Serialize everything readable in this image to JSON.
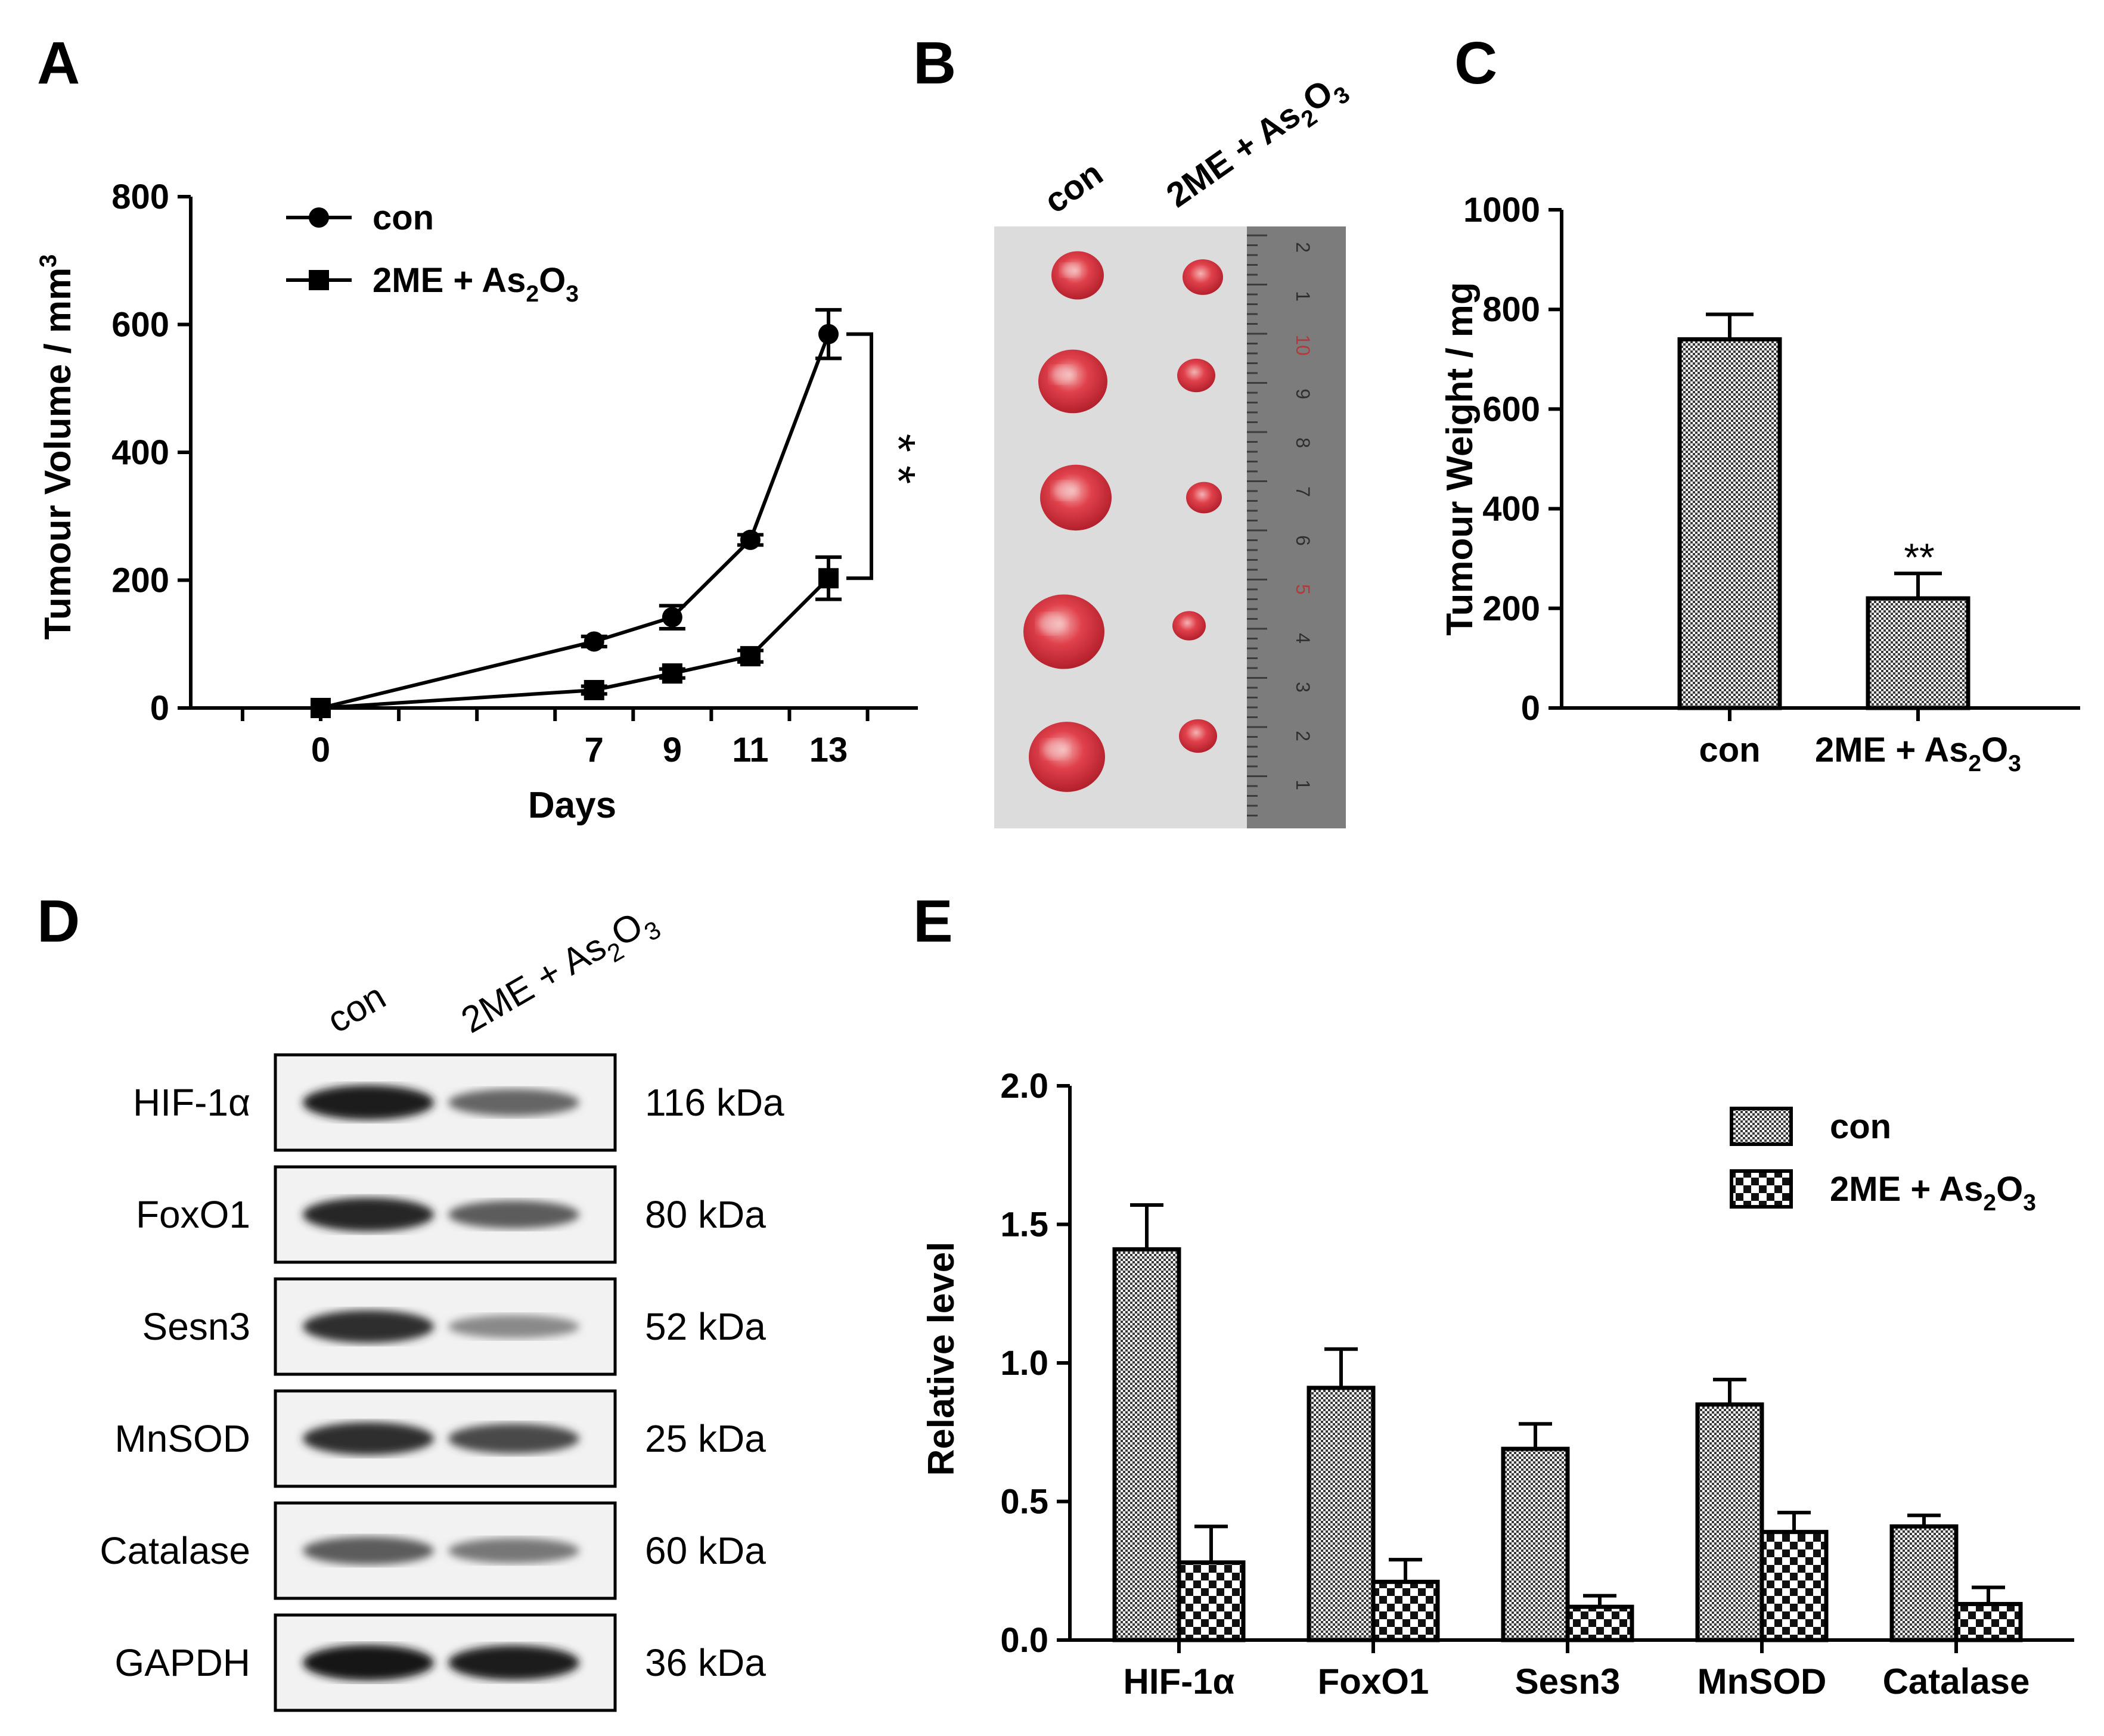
{
  "panels": {
    "a": "A",
    "b": "B",
    "c": "C",
    "d": "D",
    "e": "E"
  },
  "colors": {
    "ink": "#000000",
    "tumor": "#d8323c",
    "photo_bg": "#dcdcdc",
    "ruler": "#7c7c7c"
  },
  "chart_data": [
    {
      "panel": "A",
      "type": "line",
      "xlabel": "Days",
      "ylabel": "Tumour Volume / mm",
      "ylabel_sup": "3",
      "x": [
        0,
        7,
        9,
        11,
        13
      ],
      "x_ticklabels": [
        "0",
        "7",
        "9",
        "11",
        "13"
      ],
      "ylim": [
        0,
        800
      ],
      "y_ticks": [
        0,
        200,
        400,
        600,
        800
      ],
      "series": [
        {
          "name": "con",
          "marker": "circle",
          "values": [
            0,
            104,
            142,
            263,
            585
          ],
          "errors": [
            0,
            8,
            18,
            8,
            38
          ]
        },
        {
          "name": "2ME + As2O3",
          "marker": "square",
          "values": [
            0,
            28,
            54,
            81,
            203
          ],
          "errors": [
            0,
            6,
            7,
            9,
            33
          ]
        }
      ],
      "legend": [
        {
          "name": "con",
          "text": "con",
          "marker": "circle"
        },
        {
          "name": "2me-as2o3",
          "text": "2ME + As",
          "sub1": "2",
          "mid": "O",
          "sub2": "3",
          "marker": "square"
        }
      ],
      "significance": "* *"
    },
    {
      "panel": "C",
      "type": "bar",
      "ylabel": "Tumour Weight / mg",
      "categories": [
        "con",
        "2ME + As2O3"
      ],
      "values": [
        740,
        220
      ],
      "errors": [
        50,
        50
      ],
      "ylim": [
        0,
        1000
      ],
      "y_ticks": [
        0,
        200,
        400,
        600,
        800,
        1000
      ],
      "cat_labels": [
        {
          "text": "con"
        },
        {
          "text": "2ME + As",
          "sub1": "2",
          "mid": "O",
          "sub2": "3"
        }
      ],
      "significance": "**"
    },
    {
      "panel": "E",
      "type": "bar",
      "ylabel": "Relative level",
      "categories": [
        "HIF-1α",
        "FoxO1",
        "Sesn3",
        "MnSOD",
        "Catalase"
      ],
      "series": [
        {
          "name": "con",
          "values": [
            1.41,
            0.91,
            0.69,
            0.85,
            0.41
          ],
          "errors": [
            0.16,
            0.14,
            0.09,
            0.09,
            0.04
          ]
        },
        {
          "name": "2ME + As2O3",
          "values": [
            0.28,
            0.21,
            0.12,
            0.39,
            0.13
          ],
          "errors": [
            0.13,
            0.08,
            0.04,
            0.07,
            0.06
          ]
        }
      ],
      "ylim": [
        0,
        2.0
      ],
      "y_ticks": [
        "0.0",
        "0.5",
        "1.0",
        "1.5",
        "2.0"
      ],
      "legend": [
        {
          "name": "con",
          "text": "con"
        },
        {
          "name": "2me-as2o3",
          "text": "2ME + As",
          "sub1": "2",
          "mid": "O",
          "sub2": "3"
        }
      ],
      "legend_position": "top-right"
    }
  ],
  "photo": {
    "groups": [
      {
        "text": "con"
      },
      {
        "text": "2ME + As",
        "sub1": "2",
        "mid": "O",
        "sub2": "3"
      }
    ],
    "ruler_marks": [
      "2",
      "1",
      "10",
      "9",
      "8",
      "7",
      "6",
      "5",
      "4",
      "3",
      "2",
      "1"
    ],
    "tumours_con": 5,
    "tumours_treated": 5
  },
  "blot": {
    "lanes": [
      {
        "text": "con"
      },
      {
        "text": "2ME + As",
        "sub1": "2",
        "mid": "O",
        "sub2": "3"
      }
    ],
    "rows": [
      {
        "protein": "HIF-1α",
        "kda": "116 kDa",
        "con": 0.95,
        "treated": 0.55
      },
      {
        "protein": "FoxO1",
        "kda": "80 kDa",
        "con": 0.9,
        "treated": 0.6
      },
      {
        "protein": "Sesn3",
        "kda": "52 kDa",
        "con": 0.85,
        "treated": 0.35
      },
      {
        "protein": "MnSOD",
        "kda": "25 kDa",
        "con": 0.85,
        "treated": 0.7
      },
      {
        "protein": "Catalase",
        "kda": "60 kDa",
        "con": 0.6,
        "treated": 0.45
      },
      {
        "protein": "GAPDH",
        "kda": "36 kDa",
        "con": 1.0,
        "treated": 0.95
      }
    ]
  }
}
